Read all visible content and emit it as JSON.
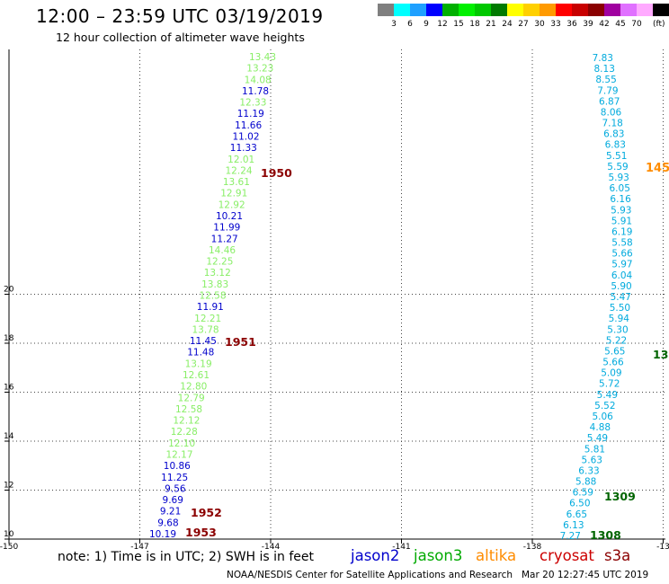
{
  "title": "12:00 – 23:59 UTC 03/19/2019",
  "subtitle": "12 hour collection of altimeter wave heights",
  "legend": {
    "unit": "(ft)",
    "items": [
      {
        "label": "",
        "color": "#7f7f7f"
      },
      {
        "label": "3",
        "color": "#00ffff"
      },
      {
        "label": "6",
        "color": "#1fa0ff"
      },
      {
        "label": "9",
        "color": "#0000ff"
      },
      {
        "label": "12",
        "color": "#00b000"
      },
      {
        "label": "15",
        "color": "#00f000"
      },
      {
        "label": "18",
        "color": "#00c800"
      },
      {
        "label": "21",
        "color": "#007a00"
      },
      {
        "label": "24",
        "color": "#ffff00"
      },
      {
        "label": "27",
        "color": "#ffd000"
      },
      {
        "label": "30",
        "color": "#ff9a00"
      },
      {
        "label": "33",
        "color": "#ff0000"
      },
      {
        "label": "36",
        "color": "#c80000"
      },
      {
        "label": "39",
        "color": "#8a0000"
      },
      {
        "label": "42",
        "color": "#a000a0"
      },
      {
        "label": "45",
        "color": "#e070ff"
      },
      {
        "label": "70",
        "color": "#ffaaff"
      },
      {
        "label": "",
        "color": "#000000"
      }
    ]
  },
  "map": {
    "x_ticks": [
      "-150",
      "-147",
      "-144",
      "-141",
      "-138",
      "-13"
    ],
    "y_ticks": [
      "10",
      "12",
      "14",
      "16",
      "18",
      "20"
    ],
    "track_west": [
      {
        "t": "13.43",
        "c": "#88ee66"
      },
      {
        "t": "13.23",
        "c": "#88ee66"
      },
      {
        "t": "14.08",
        "c": "#88ee66"
      },
      {
        "t": "11.78",
        "c": "#0000cc"
      },
      {
        "t": "12.33",
        "c": "#88ee66"
      },
      {
        "t": "11.19",
        "c": "#0000cc"
      },
      {
        "t": "11.66",
        "c": "#0000cc"
      },
      {
        "t": "11.02",
        "c": "#0000cc"
      },
      {
        "t": "11.33",
        "c": "#0000cc"
      },
      {
        "t": "12.01",
        "c": "#88ee66"
      },
      {
        "t": "12.24",
        "c": "#88ee66"
      },
      {
        "t": "13.61",
        "c": "#88ee66"
      },
      {
        "t": "12.91",
        "c": "#88ee66"
      },
      {
        "t": "12.92",
        "c": "#88ee66"
      },
      {
        "t": "10.21",
        "c": "#0000cc"
      },
      {
        "t": "11.99",
        "c": "#0000cc"
      },
      {
        "t": "11.27",
        "c": "#0000cc"
      },
      {
        "t": "14.46",
        "c": "#88ee66"
      },
      {
        "t": "12.25",
        "c": "#88ee66"
      },
      {
        "t": "13.12",
        "c": "#88ee66"
      },
      {
        "t": "13.83",
        "c": "#88ee66"
      },
      {
        "t": "12.58",
        "c": "#88ee66"
      },
      {
        "t": "11.91",
        "c": "#0000cc"
      },
      {
        "t": "12.21",
        "c": "#88ee66"
      },
      {
        "t": "13.78",
        "c": "#88ee66"
      },
      {
        "t": "11.45",
        "c": "#0000cc"
      },
      {
        "t": "11.48",
        "c": "#0000cc"
      },
      {
        "t": "13.19",
        "c": "#88ee66"
      },
      {
        "t": "12.61",
        "c": "#88ee66"
      },
      {
        "t": "12.80",
        "c": "#88ee66"
      },
      {
        "t": "12.79",
        "c": "#88ee66"
      },
      {
        "t": "12.58",
        "c": "#88ee66"
      },
      {
        "t": "12.12",
        "c": "#88ee66"
      },
      {
        "t": "12.28",
        "c": "#88ee66"
      },
      {
        "t": "12.10",
        "c": "#88ee66"
      },
      {
        "t": "12.17",
        "c": "#88ee66"
      },
      {
        "t": "10.86",
        "c": "#0000cc"
      },
      {
        "t": "11.25",
        "c": "#0000cc"
      },
      {
        "t": "9.56",
        "c": "#0000cc"
      },
      {
        "t": "9.69",
        "c": "#0000cc"
      },
      {
        "t": "9.21",
        "c": "#0000cc"
      },
      {
        "t": "9.68",
        "c": "#0000cc"
      },
      {
        "t": "10.19",
        "c": "#0000cc"
      }
    ],
    "times_west": [
      {
        "t": "1950",
        "c": "#8b0000"
      },
      {
        "t": "1951",
        "c": "#8b0000"
      },
      {
        "t": "1952",
        "c": "#8b0000"
      },
      {
        "t": "1953",
        "c": "#8b0000"
      }
    ],
    "track_east": [
      "7.83",
      "8.13",
      "8.55",
      "7.79",
      "6.87",
      "8.06",
      "7.18",
      "6.83",
      "6.83",
      "5.51",
      "5.59",
      "5.93",
      "6.05",
      "6.16",
      "5.93",
      "5.91",
      "6.19",
      "5.58",
      "5.66",
      "5.97",
      "6.04",
      "5.90",
      "5.47",
      "5.50",
      "5.94",
      "5.30",
      "5.22",
      "5.65",
      "5.66",
      "5.09",
      "5.72",
      "5.49",
      "5.52",
      "5.06",
      "4.88",
      "5.49",
      "5.81",
      "5.63",
      "6.33",
      "5.88",
      "6.59",
      "6.50",
      "6.65",
      "6.13",
      "7.27"
    ],
    "track_east_color": "#00aadd",
    "times_east": [
      {
        "t": "1309",
        "c": "#006400"
      },
      {
        "t": "1308",
        "c": "#006400"
      }
    ],
    "edge_labels": [
      {
        "t": "145",
        "c": "#ff8c00"
      },
      {
        "t": "13",
        "c": "#006400"
      }
    ]
  },
  "footer": {
    "note": "note:  1) Time is in UTC;  2) SWH is in feet",
    "satellites": [
      {
        "name": "jason2",
        "color": "#0000cc"
      },
      {
        "name": "jason3",
        "color": "#00aa00"
      },
      {
        "name": "altika",
        "color": "#ff8c00"
      },
      {
        "name": "cryosat",
        "color": "#cc0000"
      },
      {
        "name": "s3a",
        "color": "#8b0000"
      }
    ],
    "credit": "NOAA/NESDIS Center for Satellite Applications and Research",
    "timestamp": "Mar 20 12:27:45 UTC 2019"
  }
}
